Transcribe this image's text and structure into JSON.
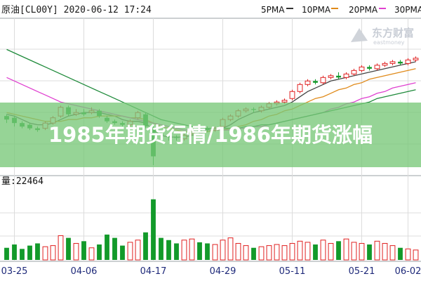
{
  "header": {
    "title": "原油[CL00Y] 2020-06-12 17:24",
    "ma_legend": [
      {
        "label": "5PMA",
        "color": "#333333"
      },
      {
        "label": "10PMA",
        "color": "#e08a1a"
      },
      {
        "label": "20PMA",
        "color": "#e040d0"
      },
      {
        "label": "30PMA",
        "color": "#1e8a3a"
      }
    ]
  },
  "watermark": {
    "brand": "东方财富",
    "sub": "eastmoney"
  },
  "banner": {
    "text": "1985年期货行情/1986年期货涨幅"
  },
  "volume_label": "量:22464",
  "colors": {
    "up": "#e02020",
    "down": "#129a2a",
    "grid": "#dcdcdc",
    "axis_text": "#1f2a7a"
  },
  "chart_data": {
    "type": "candlestick",
    "x_ticks": [
      "03-25",
      "04-06",
      "04-17",
      "04-29",
      "05-11",
      "05-21",
      "06-02"
    ],
    "price_ylim": [
      -40,
      45
    ],
    "volume_ylim": [
      0,
      130
    ],
    "candles": [
      {
        "o": -10,
        "c": -12,
        "h": -9,
        "l": -14,
        "v": 22
      },
      {
        "o": -11,
        "c": -14,
        "h": -10,
        "l": -16,
        "v": 28
      },
      {
        "o": -14,
        "c": -16,
        "h": -13,
        "l": -17,
        "v": 20
      },
      {
        "o": -15,
        "c": -17,
        "h": -14,
        "l": -18,
        "v": 26
      },
      {
        "o": -17,
        "c": -18,
        "h": -16,
        "l": -19,
        "v": 30
      },
      {
        "o": -17,
        "c": -14,
        "h": -13,
        "l": -18,
        "v": 24
      },
      {
        "o": -14,
        "c": -11,
        "h": -10,
        "l": -15,
        "v": 26
      },
      {
        "o": -10,
        "c": -5,
        "h": -4,
        "l": -11,
        "v": 44
      },
      {
        "o": -5,
        "c": -9,
        "h": -4,
        "l": -10,
        "v": 40
      },
      {
        "o": -9,
        "c": -8,
        "h": -6,
        "l": -10,
        "v": 30
      },
      {
        "o": -8,
        "c": -9,
        "h": -6,
        "l": -10,
        "v": 34
      },
      {
        "o": -8,
        "c": -7,
        "h": -5,
        "l": -9,
        "v": 22
      },
      {
        "o": -7,
        "c": -10,
        "h": -6,
        "l": -11,
        "v": 28
      },
      {
        "o": -11,
        "c": -13,
        "h": -10,
        "l": -14,
        "v": 46
      },
      {
        "o": -13,
        "c": -14,
        "h": -12,
        "l": -15,
        "v": 40
      },
      {
        "o": -14,
        "c": -15,
        "h": -13,
        "l": -16,
        "v": 26
      },
      {
        "o": -15,
        "c": -13,
        "h": -12,
        "l": -16,
        "v": 32
      },
      {
        "o": -11,
        "c": -8,
        "h": -7,
        "l": -12,
        "v": 36
      },
      {
        "o": -9,
        "c": -16,
        "h": -8,
        "l": -17,
        "v": 50
      },
      {
        "o": -17,
        "c": -33,
        "h": -16,
        "l": -38,
        "v": 110
      },
      {
        "o": -20,
        "c": -21,
        "h": -19,
        "l": -23,
        "v": 40
      },
      {
        "o": -21,
        "c": -22,
        "h": -20,
        "l": -24,
        "v": 36
      },
      {
        "o": -22,
        "c": -22.5,
        "h": -21,
        "l": -24,
        "v": 30
      },
      {
        "o": -23,
        "c": -21,
        "h": -20,
        "l": -24,
        "v": 36
      },
      {
        "o": -20,
        "c": -19,
        "h": -18,
        "l": -21,
        "v": 38
      },
      {
        "o": -18,
        "c": -19,
        "h": -17,
        "l": -20,
        "v": 32
      },
      {
        "o": -17,
        "c": -18,
        "h": -16,
        "l": -19,
        "v": 30
      },
      {
        "o": -18,
        "c": -17,
        "h": -16,
        "l": -19,
        "v": 28
      },
      {
        "o": -16,
        "c": -12,
        "h": -11,
        "l": -17,
        "v": 36
      },
      {
        "o": -12,
        "c": -10,
        "h": -9,
        "l": -13,
        "v": 40
      },
      {
        "o": -10,
        "c": -7,
        "h": -6,
        "l": -11,
        "v": 30
      },
      {
        "o": -7,
        "c": -6,
        "h": -5,
        "l": -8,
        "v": 26
      },
      {
        "o": -6,
        "c": -6.5,
        "h": -5,
        "l": -8,
        "v": 22
      },
      {
        "o": -7,
        "c": -5,
        "h": -4,
        "l": -8,
        "v": 24
      },
      {
        "o": -5,
        "c": -3,
        "h": -2,
        "l": -6,
        "v": 26
      },
      {
        "o": -3,
        "c": -2,
        "h": -1,
        "l": -4,
        "v": 28
      },
      {
        "o": -2,
        "c": -1,
        "h": 0,
        "l": -3,
        "v": 26
      },
      {
        "o": 0,
        "c": 4,
        "h": 5,
        "l": -1,
        "v": 30
      },
      {
        "o": 4,
        "c": 8,
        "h": 9,
        "l": 3,
        "v": 34
      },
      {
        "o": 8,
        "c": 10,
        "h": 11,
        "l": 7,
        "v": 32
      },
      {
        "o": 10,
        "c": 9,
        "h": 11,
        "l": 8,
        "v": 28
      },
      {
        "o": 9,
        "c": 12,
        "h": 13,
        "l": 8,
        "v": 36
      },
      {
        "o": 12,
        "c": 13,
        "h": 14,
        "l": 11,
        "v": 30
      },
      {
        "o": 13,
        "c": 12,
        "h": 15,
        "l": 11,
        "v": 34
      },
      {
        "o": 12,
        "c": 14,
        "h": 15,
        "l": 11,
        "v": 38
      },
      {
        "o": 14,
        "c": 16,
        "h": 17,
        "l": 13,
        "v": 32
      },
      {
        "o": 16,
        "c": 18,
        "h": 19,
        "l": 15,
        "v": 30
      },
      {
        "o": 18,
        "c": 17,
        "h": 19,
        "l": 16,
        "v": 28
      },
      {
        "o": 17,
        "c": 19,
        "h": 20,
        "l": 16,
        "v": 34
      },
      {
        "o": 19,
        "c": 20,
        "h": 21,
        "l": 18,
        "v": 30
      },
      {
        "o": 20,
        "c": 21,
        "h": 22,
        "l": 19,
        "v": 26
      },
      {
        "o": 21,
        "c": 20,
        "h": 22,
        "l": 19,
        "v": 22
      },
      {
        "o": 20,
        "c": 22,
        "h": 23,
        "l": 19,
        "v": 20
      },
      {
        "o": 22,
        "c": 23,
        "h": 24,
        "l": 21,
        "v": 18
      }
    ],
    "ma": [
      {
        "name": "5PMA",
        "color": "#444444",
        "values": [
          -9,
          -10,
          -12,
          -14,
          -15,
          -15,
          -14,
          -12,
          -10,
          -9,
          -8,
          -8,
          -8,
          -9,
          -10,
          -12,
          -13,
          -13,
          -14,
          -18,
          -21,
          -22,
          -22,
          -22,
          -21,
          -20,
          -19,
          -18,
          -17,
          -15,
          -12,
          -10,
          -8,
          -7,
          -6,
          -5,
          -4,
          -2,
          1,
          4,
          6,
          8,
          10,
          11,
          12,
          13,
          14,
          15,
          16,
          17,
          18,
          19,
          20,
          21
        ]
      },
      {
        "name": "10PMA",
        "color": "#e08a1a",
        "values": [
          -8,
          -9,
          -10,
          -11,
          -12,
          -13,
          -13,
          -13,
          -12,
          -12,
          -11,
          -11,
          -10,
          -10,
          -10,
          -10,
          -11,
          -11,
          -12,
          -14,
          -16,
          -17,
          -18,
          -19,
          -19,
          -19,
          -19,
          -18,
          -18,
          -17,
          -16,
          -15,
          -13,
          -12,
          -10,
          -9,
          -7,
          -6,
          -4,
          -2,
          0,
          1,
          3,
          5,
          6,
          8,
          9,
          11,
          12,
          13,
          14,
          15,
          16,
          17
        ]
      },
      {
        "name": "20PMA",
        "color": "#e040d0",
        "values": [
          12,
          10,
          8,
          6,
          4,
          2,
          0,
          -2,
          -3,
          -4,
          -5,
          -6,
          -7,
          -8,
          -9,
          -10,
          -11,
          -12,
          -13,
          -14,
          -15,
          -16,
          -17,
          -18,
          -18,
          -18,
          -18,
          -18,
          -18,
          -18,
          -17,
          -17,
          -16,
          -16,
          -15,
          -14,
          -13,
          -12,
          -11,
          -10,
          -9,
          -8,
          -6,
          -5,
          -3,
          -2,
          0,
          1,
          3,
          4,
          6,
          7,
          8,
          9
        ]
      },
      {
        "name": "30PMA",
        "color": "#1e8a3a",
        "values": [
          28,
          26,
          24,
          22,
          20,
          18,
          16,
          14,
          12,
          10,
          8,
          6,
          4,
          2,
          0,
          -2,
          -4,
          -6,
          -8,
          -10,
          -12,
          -13,
          -14,
          -15,
          -16,
          -17,
          -17,
          -17,
          -17,
          -17,
          -17,
          -16,
          -16,
          -15,
          -15,
          -14,
          -13,
          -12,
          -11,
          -10,
          -9,
          -8,
          -7,
          -6,
          -5,
          -4,
          -3,
          -2,
          0,
          1,
          2,
          3,
          4,
          5
        ]
      }
    ]
  }
}
